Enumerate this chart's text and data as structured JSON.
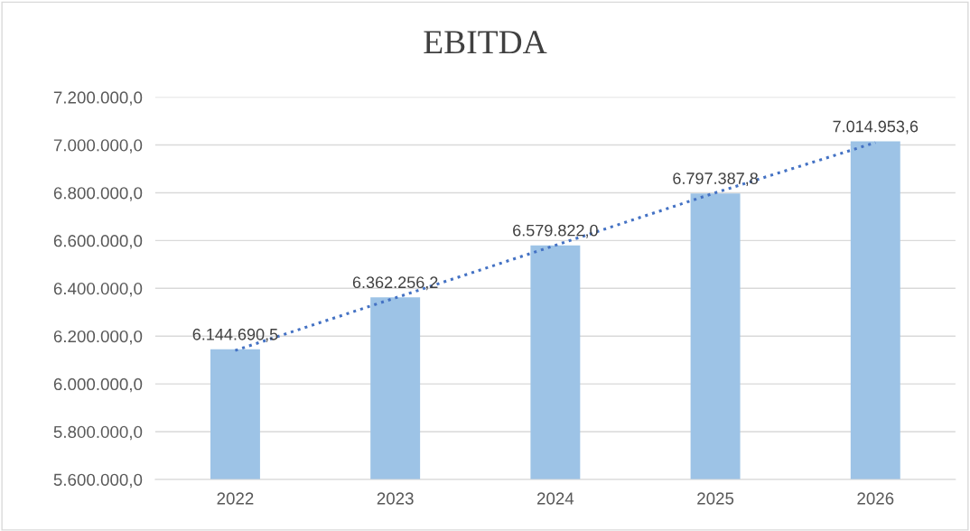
{
  "chart_data": {
    "type": "bar",
    "title": "EBITDA",
    "categories": [
      "2022",
      "2023",
      "2024",
      "2025",
      "2026"
    ],
    "series": [
      {
        "color": "#9dc3e6",
        "values": [
          6144690.5,
          6362256.2,
          6579822.0,
          6797387.8,
          7014953.6
        ],
        "value_labels": [
          "6.144.690,5",
          "6.362.256,2",
          "6.579.822,0",
          "6.797.387,8",
          "7.014.953,6"
        ]
      },
      {
        "type": "line",
        "color": "#4472c4",
        "line_style": "dotted",
        "marker": "none",
        "values": [
          6140000,
          6360000,
          6580000,
          6800000,
          7010000
        ]
      }
    ],
    "ylim": [
      5600000,
      7200000
    ],
    "yticks": [
      {
        "value": 5600000,
        "label": "5.600.000,0"
      },
      {
        "value": 5800000,
        "label": "5.800.000,0"
      },
      {
        "value": 6000000,
        "label": "6.000.000,0"
      },
      {
        "value": 6200000,
        "label": "6.200.000,0"
      },
      {
        "value": 6400000,
        "label": "6.400.000,0"
      },
      {
        "value": 6600000,
        "label": "6.600.000,0"
      },
      {
        "value": 6800000,
        "label": "6.800.000,0"
      },
      {
        "value": 7000000,
        "label": "7.000.000,0"
      },
      {
        "value": 7200000,
        "label": "7.200.000,0"
      }
    ],
    "grid": "y",
    "legend": false
  }
}
